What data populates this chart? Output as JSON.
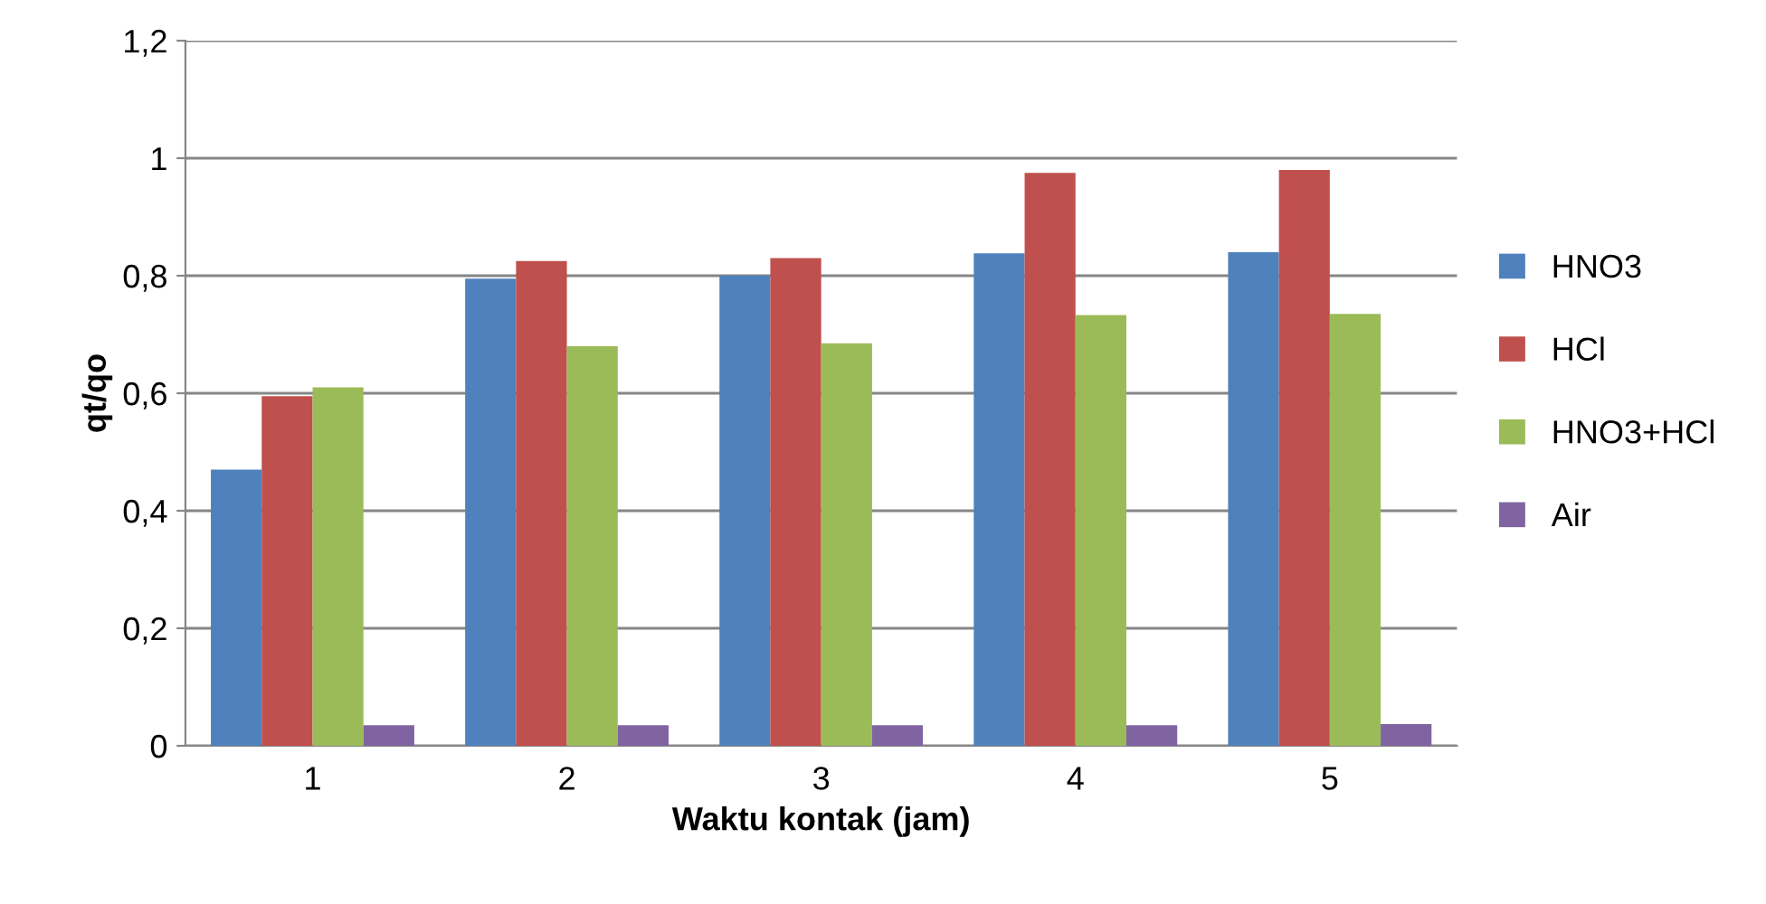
{
  "chart_data": {
    "type": "bar",
    "xlabel": "Waktu kontak (jam)",
    "ylabel": "qt/qo",
    "categories": [
      "1",
      "2",
      "3",
      "4",
      "5"
    ],
    "series": [
      {
        "name": "HNO3",
        "color": "#4f81bd",
        "values": [
          0.47,
          0.795,
          0.8,
          0.838,
          0.84
        ]
      },
      {
        "name": "HCl",
        "color": "#c0504d",
        "values": [
          0.595,
          0.825,
          0.83,
          0.975,
          0.98
        ]
      },
      {
        "name": "HNO3+HCl",
        "color": "#9bbb59",
        "values": [
          0.61,
          0.68,
          0.685,
          0.733,
          0.735
        ]
      },
      {
        "name": "Air",
        "color": "#8064a2",
        "values": [
          0.035,
          0.035,
          0.035,
          0.035,
          0.037
        ]
      }
    ],
    "ylim": [
      0,
      1.2
    ],
    "yticks": [
      0,
      {
        "value": 0.2,
        "label": "0,2"
      },
      {
        "value": 0.4,
        "label": "0,4"
      },
      {
        "value": 0.6,
        "label": "0,6"
      },
      {
        "value": 0.8,
        "label": "0,8"
      },
      1,
      {
        "value": 1.2,
        "label": "1,2"
      }
    ],
    "grid": "y",
    "legend": "right"
  }
}
